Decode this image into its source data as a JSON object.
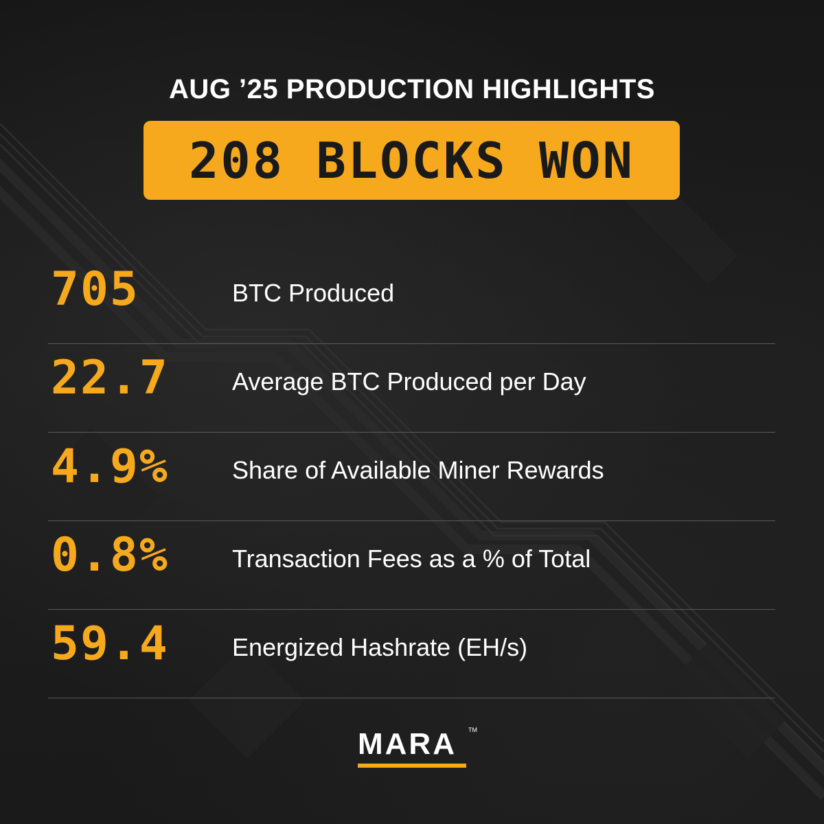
{
  "header": {
    "title": "AUG ’25 PRODUCTION HIGHLIGHTS",
    "banner": "208 BLOCKS WON"
  },
  "stats": [
    {
      "value": "705",
      "label": "BTC Produced"
    },
    {
      "value": "22.7",
      "label": "Average BTC Produced per Day"
    },
    {
      "value": "4.9%",
      "label": "Share of Available Miner Rewards"
    },
    {
      "value": "0.8%",
      "label": "Transaction Fees as a % of Total"
    },
    {
      "value": "59.4",
      "label": "Energized Hashrate (EH/s)"
    }
  ],
  "logo": {
    "text": "MARA",
    "trademark": "TM"
  },
  "colors": {
    "accent": "#f6a91d",
    "background": "#1c1c1c",
    "text": "#ffffff",
    "divider": "#5a5a5a"
  }
}
